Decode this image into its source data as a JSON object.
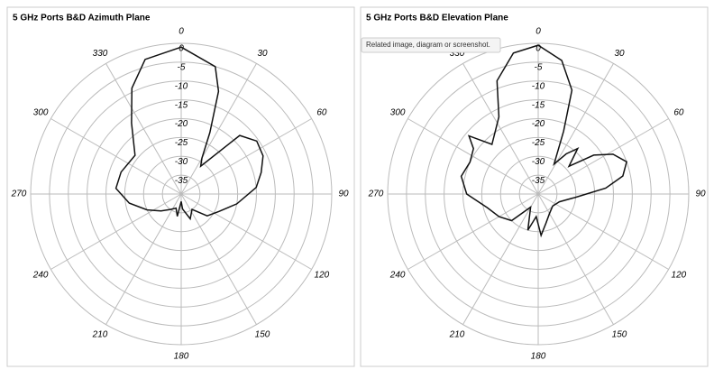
{
  "chart_data": [
    {
      "type": "polar",
      "title": "5 GHz Ports B&D Azimuth Plane",
      "color": "#111111",
      "direction": "clockwise",
      "zero_location": "top",
      "rlim": [
        -40,
        0
      ],
      "rticks": [
        0,
        -5,
        -10,
        -15,
        -20,
        -25,
        -30,
        -35
      ],
      "thetaticks": [
        0,
        30,
        60,
        90,
        120,
        150,
        180,
        210,
        240,
        270,
        300,
        330
      ],
      "theta": [
        0,
        15,
        20,
        25,
        30,
        35,
        45,
        55,
        65,
        75,
        85,
        100,
        115,
        130,
        145,
        160,
        175,
        180,
        190,
        200,
        215,
        230,
        245,
        260,
        275,
        290,
        310,
        325,
        335,
        345
      ],
      "values": [
        -1,
        -5,
        -11,
        -22,
        -29,
        -31,
        -18,
        -15.5,
        -16,
        -18,
        -20,
        -25,
        -29,
        -31,
        -35,
        -33,
        -36,
        -38,
        -34,
        -36,
        -35,
        -33,
        -30,
        -26,
        -22.6,
        -23,
        -24,
        -17,
        -9,
        -3
      ]
    },
    {
      "type": "polar",
      "title": "5 GHz Ports B&D Elevation Plane",
      "color": "#111111",
      "direction": "clockwise",
      "zero_location": "top",
      "rlim": [
        -40,
        0
      ],
      "rticks": [
        0,
        -5,
        -10,
        -15,
        -20,
        -25,
        -30,
        -35
      ],
      "thetaticks": [
        0,
        30,
        60,
        90,
        120,
        150,
        180,
        210,
        240,
        270,
        300,
        330
      ],
      "theta": [
        0,
        10,
        18,
        22,
        28,
        35,
        41,
        48,
        55,
        62,
        70,
        78,
        85,
        95,
        110,
        130,
        150,
        165,
        176,
        185,
        196,
        210,
        225,
        240,
        255,
        270,
        283,
        295,
        305,
        310,
        317,
        325,
        333,
        340,
        350
      ],
      "values": [
        -0.5,
        -4,
        -11,
        -22,
        -31,
        -27,
        -24,
        -29,
        -22,
        -17.5,
        -15,
        -17,
        -22,
        -30,
        -34,
        -35,
        -34,
        -32,
        -29,
        -34,
        -30,
        -36,
        -30,
        -28,
        -26,
        -21,
        -19,
        -20,
        -19,
        -16,
        -22,
        -20,
        -17,
        -8,
        -2
      ]
    }
  ],
  "tooltip": "Related image, diagram or screenshot."
}
